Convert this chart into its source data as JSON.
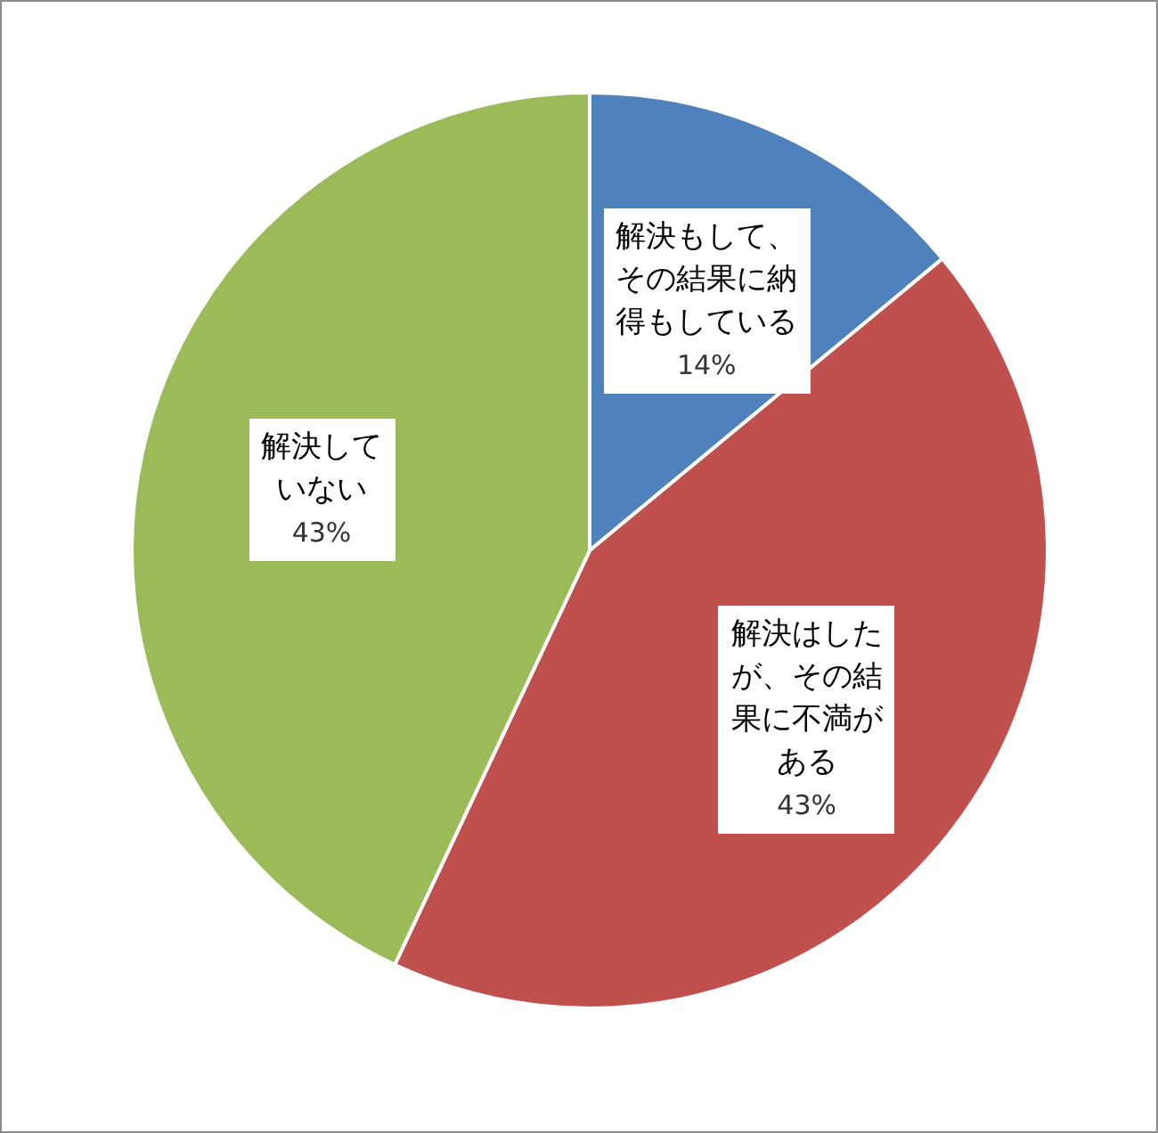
{
  "chart_data": {
    "type": "pie",
    "categories": [
      "解決もして、その結果に納得もしている",
      "解決はしたが、その結果に不満がある",
      "解決していない"
    ],
    "values": [
      14,
      43,
      43
    ],
    "colors": [
      "#4f81bd",
      "#c0504d",
      "#9bbb59"
    ],
    "value_labels": [
      "14%",
      "43%",
      "43%"
    ],
    "legend": false
  }
}
